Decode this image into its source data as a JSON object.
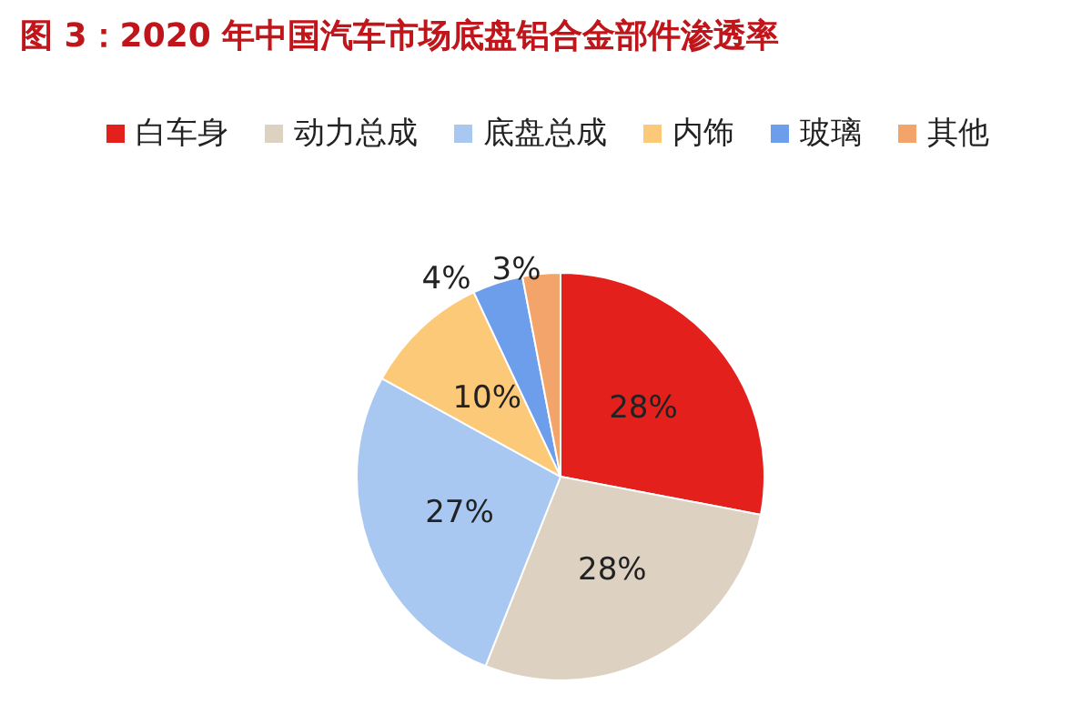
{
  "chart_data": {
    "type": "pie",
    "title": "图 3：2020 年中国汽车市场底盘铝合金部件渗透率",
    "categories": [
      "白车身",
      "动力总成",
      "底盘总成",
      "内饰",
      "玻璃",
      "其他"
    ],
    "values": [
      28,
      28,
      27,
      10,
      4,
      3
    ],
    "value_labels": [
      "28%",
      "28%",
      "27%",
      "10%",
      "4%",
      "3%"
    ],
    "colors": [
      "#e3201b",
      "#ddd1c1",
      "#a8c8f2",
      "#fcc978",
      "#6d9eeb",
      "#f2a46a"
    ],
    "legend": "top"
  }
}
